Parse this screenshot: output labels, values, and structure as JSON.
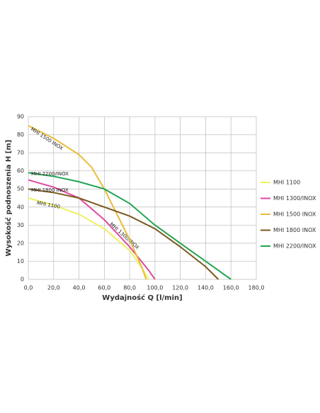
{
  "chart_data": {
    "type": "line",
    "x_label": "Wydajność Q [l/min]",
    "y_label": "Wysokość podnoszenia H [m]",
    "xlim": [
      0,
      180
    ],
    "xticks": [
      {
        "value": 0,
        "label": "0,0"
      },
      {
        "value": 20,
        "label": "20,0"
      },
      {
        "value": 40,
        "label": "40,0"
      },
      {
        "value": 60,
        "label": "60,0"
      },
      {
        "value": 80,
        "label": "80,0"
      },
      {
        "value": 100,
        "label": "100,0"
      },
      {
        "value": 120,
        "label": "120,0"
      },
      {
        "value": 140,
        "label": "140,0"
      },
      {
        "value": 160,
        "label": "160,0"
      },
      {
        "value": 180,
        "label": "180,0"
      }
    ],
    "ylim": [
      0,
      90
    ],
    "yticks": [
      0,
      10,
      20,
      30,
      40,
      50,
      60,
      70,
      80,
      90
    ],
    "grid": true,
    "legend": "right",
    "series": [
      {
        "name": "MHI 1100",
        "color": "#eef060",
        "x": [
          0,
          20,
          40,
          60,
          80,
          90,
          95
        ],
        "values": [
          45,
          41,
          36,
          28,
          16,
          6,
          0
        ]
      },
      {
        "name": "MHI 1300/INOX",
        "color": "#df4a9e",
        "x": [
          0,
          20,
          40,
          60,
          80,
          95,
          100
        ],
        "values": [
          55,
          51,
          45,
          33,
          18,
          5,
          0
        ]
      },
      {
        "name": "MHI 1500 INOX",
        "color": "#e8bc3a",
        "x": [
          0,
          20,
          40,
          50,
          60,
          70,
          80,
          90,
          93
        ],
        "values": [
          85,
          78,
          69,
          62,
          50,
          36,
          22,
          6,
          0
        ]
      },
      {
        "name": "MHI 1800 INOX",
        "color": "#7a5a1e",
        "x": [
          0,
          20,
          40,
          60,
          80,
          100,
          120,
          140,
          150
        ],
        "values": [
          50,
          48,
          45,
          40,
          35,
          28,
          18,
          7,
          0
        ]
      },
      {
        "name": "MHI 2200/INOX",
        "color": "#22a454",
        "x": [
          0,
          20,
          40,
          60,
          80,
          100,
          120,
          140,
          160
        ],
        "values": [
          59,
          57,
          54,
          50,
          42,
          30,
          20,
          10,
          0
        ]
      }
    ]
  }
}
